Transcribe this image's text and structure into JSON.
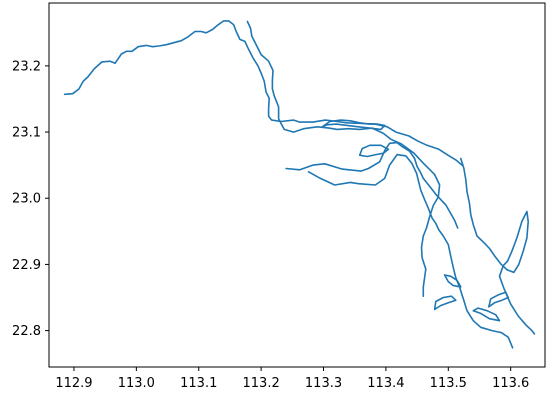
{
  "chart_data": {
    "type": "line",
    "title": "",
    "xlabel": "",
    "ylabel": "",
    "xlim": [
      112.86,
      113.655
    ],
    "ylim": [
      22.745,
      23.295
    ],
    "grid": false,
    "x_ticks": [
      "112.9",
      "113.0",
      "113.1",
      "113.2",
      "113.3",
      "113.4",
      "113.5",
      "113.6"
    ],
    "y_ticks": [
      "22.8",
      "22.9",
      "23.0",
      "23.1",
      "23.2"
    ],
    "x_tick_values": [
      112.9,
      113.0,
      113.1,
      113.2,
      113.3,
      113.4,
      113.5,
      113.6
    ],
    "y_tick_values": [
      22.8,
      22.9,
      23.0,
      23.1,
      23.2
    ],
    "color": "#1f77b4",
    "series": [
      {
        "points": [
          [
            112.885,
            23.157
          ],
          [
            112.898,
            23.158
          ],
          [
            112.908,
            23.165
          ],
          [
            112.915,
            23.177
          ],
          [
            112.922,
            23.183
          ],
          [
            112.933,
            23.196
          ],
          [
            112.945,
            23.206
          ],
          [
            112.958,
            23.207
          ],
          [
            112.966,
            23.204
          ],
          [
            112.976,
            23.218
          ],
          [
            112.984,
            23.222
          ],
          [
            112.993,
            23.222
          ],
          [
            113.003,
            23.229
          ],
          [
            113.016,
            23.231
          ],
          [
            113.026,
            23.229
          ],
          [
            113.036,
            23.23
          ],
          [
            113.048,
            23.232
          ],
          [
            113.06,
            23.235
          ],
          [
            113.072,
            23.238
          ],
          [
            113.083,
            23.244
          ],
          [
            113.094,
            23.252
          ],
          [
            113.104,
            23.252
          ],
          [
            113.112,
            23.25
          ],
          [
            113.122,
            23.255
          ],
          [
            113.131,
            23.262
          ],
          [
            113.14,
            23.268
          ],
          [
            113.148,
            23.268
          ],
          [
            113.156,
            23.262
          ],
          [
            113.16,
            23.252
          ],
          [
            113.166,
            23.24
          ],
          [
            113.174,
            23.237
          ],
          [
            113.18,
            23.225
          ],
          [
            113.187,
            23.212
          ],
          [
            113.195,
            23.2
          ],
          [
            113.201,
            23.187
          ],
          [
            113.205,
            23.177
          ],
          [
            113.208,
            23.16
          ],
          [
            113.213,
            23.151
          ],
          [
            113.212,
            23.135
          ],
          [
            113.212,
            23.124
          ],
          [
            113.217,
            23.118
          ],
          [
            113.232,
            23.116
          ],
          [
            113.252,
            23.118
          ],
          [
            113.262,
            23.115
          ],
          [
            113.283,
            23.115
          ],
          [
            113.303,
            23.118
          ],
          [
            113.322,
            23.116
          ],
          [
            113.337,
            23.114
          ],
          [
            113.362,
            23.113
          ],
          [
            113.383,
            23.112
          ],
          [
            113.402,
            23.108
          ],
          [
            113.416,
            23.1
          ],
          [
            113.437,
            23.094
          ],
          [
            113.452,
            23.086
          ],
          [
            113.466,
            23.08
          ],
          [
            113.485,
            23.074
          ],
          [
            113.498,
            23.066
          ],
          [
            113.512,
            23.058
          ],
          [
            113.522,
            23.05
          ]
        ]
      },
      {
        "points": [
          [
            113.178,
            23.267
          ],
          [
            113.183,
            23.257
          ],
          [
            113.185,
            23.245
          ],
          [
            113.193,
            23.23
          ],
          [
            113.2,
            23.217
          ],
          [
            113.212,
            23.207
          ],
          [
            113.219,
            23.193
          ],
          [
            113.218,
            23.178
          ],
          [
            113.218,
            23.165
          ],
          [
            113.221,
            23.155
          ],
          [
            113.228,
            23.138
          ],
          [
            113.228,
            23.12
          ],
          [
            113.237,
            23.104
          ],
          [
            113.252,
            23.1
          ],
          [
            113.268,
            23.105
          ],
          [
            113.29,
            23.108
          ],
          [
            113.309,
            23.106
          ],
          [
            113.322,
            23.104
          ],
          [
            113.34,
            23.105
          ],
          [
            113.358,
            23.104
          ],
          [
            113.378,
            23.106
          ],
          [
            113.396,
            23.098
          ],
          [
            113.408,
            23.089
          ],
          [
            113.425,
            23.082
          ],
          [
            113.445,
            23.068
          ],
          [
            113.46,
            23.053
          ],
          [
            113.478,
            23.036
          ],
          [
            113.486,
            23.02
          ],
          [
            113.484,
            23.002
          ],
          [
            113.476,
            22.989
          ],
          [
            113.47,
            22.972
          ],
          [
            113.465,
            22.955
          ],
          [
            113.46,
            22.943
          ],
          [
            113.457,
            22.926
          ],
          [
            113.458,
            22.91
          ],
          [
            113.464,
            22.893
          ],
          [
            113.462,
            22.88
          ],
          [
            113.46,
            22.866
          ],
          [
            113.46,
            22.852
          ]
        ]
      },
      {
        "points": [
          [
            113.24,
            23.045
          ],
          [
            113.262,
            23.043
          ],
          [
            113.283,
            23.05
          ],
          [
            113.302,
            23.052
          ],
          [
            113.33,
            23.044
          ],
          [
            113.36,
            23.041
          ],
          [
            113.372,
            23.045
          ],
          [
            113.39,
            23.055
          ],
          [
            113.398,
            23.072
          ],
          [
            113.406,
            23.083
          ],
          [
            113.418,
            23.084
          ],
          [
            113.426,
            23.078
          ],
          [
            113.438,
            23.071
          ],
          [
            113.446,
            23.06
          ],
          [
            113.45,
            23.048
          ],
          [
            113.455,
            23.04
          ],
          [
            113.46,
            23.03
          ],
          [
            113.47,
            23.018
          ],
          [
            113.48,
            23.006
          ],
          [
            113.496,
            22.99
          ],
          [
            113.51,
            22.967
          ],
          [
            113.515,
            22.955
          ]
        ]
      },
      {
        "points": [
          [
            113.276,
            23.04
          ],
          [
            113.295,
            23.03
          ],
          [
            113.318,
            23.02
          ],
          [
            113.343,
            23.024
          ],
          [
            113.356,
            23.022
          ],
          [
            113.383,
            23.02
          ],
          [
            113.398,
            23.03
          ],
          [
            113.406,
            23.05
          ],
          [
            113.418,
            23.066
          ],
          [
            113.432,
            23.064
          ],
          [
            113.442,
            23.052
          ],
          [
            113.449,
            23.038
          ],
          [
            113.456,
            23.012
          ],
          [
            113.462,
            22.998
          ],
          [
            113.468,
            22.985
          ],
          [
            113.474,
            22.97
          ],
          [
            113.48,
            22.962
          ],
          [
            113.485,
            22.952
          ],
          [
            113.492,
            22.943
          ],
          [
            113.5,
            22.93
          ],
          [
            113.504,
            22.912
          ],
          [
            113.508,
            22.895
          ],
          [
            113.512,
            22.88
          ],
          [
            113.518,
            22.866
          ],
          [
            113.524,
            22.848
          ],
          [
            113.53,
            22.83
          ],
          [
            113.54,
            22.815
          ],
          [
            113.552,
            22.805
          ],
          [
            113.57,
            22.8
          ],
          [
            113.585,
            22.797
          ],
          [
            113.596,
            22.79
          ],
          [
            113.603,
            22.774
          ]
        ]
      },
      {
        "points": [
          [
            113.52,
            23.06
          ],
          [
            113.525,
            23.045
          ],
          [
            113.528,
            23.028
          ],
          [
            113.53,
            23.01
          ],
          [
            113.534,
            22.992
          ],
          [
            113.536,
            22.975
          ],
          [
            113.54,
            22.96
          ],
          [
            113.546,
            22.943
          ],
          [
            113.558,
            22.932
          ],
          [
            113.566,
            22.924
          ],
          [
            113.574,
            22.913
          ],
          [
            113.584,
            22.901
          ],
          [
            113.594,
            22.892
          ],
          [
            113.605,
            22.888
          ],
          [
            113.613,
            22.9
          ],
          [
            113.62,
            22.92
          ],
          [
            113.626,
            22.94
          ],
          [
            113.628,
            22.965
          ],
          [
            113.626,
            22.98
          ],
          [
            113.618,
            22.965
          ],
          [
            113.61,
            22.94
          ],
          [
            113.602,
            22.92
          ],
          [
            113.595,
            22.905
          ],
          [
            113.588,
            22.898
          ],
          [
            113.582,
            22.882
          ],
          [
            113.59,
            22.862
          ],
          [
            113.6,
            22.84
          ],
          [
            113.612,
            22.822
          ],
          [
            113.625,
            22.808
          ],
          [
            113.634,
            22.8
          ],
          [
            113.638,
            22.795
          ]
        ]
      },
      {
        "points": [
          [
            113.298,
            23.108
          ],
          [
            113.31,
            23.116
          ],
          [
            113.328,
            23.118
          ],
          [
            113.343,
            23.117
          ],
          [
            113.358,
            23.114
          ],
          [
            113.372,
            23.112
          ],
          [
            113.386,
            23.112
          ],
          [
            113.398,
            23.11
          ],
          [
            113.392,
            23.104
          ],
          [
            113.374,
            23.106
          ],
          [
            113.356,
            23.108
          ],
          [
            113.338,
            23.11
          ],
          [
            113.32,
            23.112
          ],
          [
            113.306,
            23.111
          ],
          [
            113.298,
            23.108
          ]
        ]
      },
      {
        "points": [
          [
            113.358,
            23.065
          ],
          [
            113.362,
            23.075
          ],
          [
            113.374,
            23.08
          ],
          [
            113.392,
            23.08
          ],
          [
            113.404,
            23.074
          ],
          [
            113.396,
            23.068
          ],
          [
            113.384,
            23.066
          ],
          [
            113.37,
            23.063
          ],
          [
            113.358,
            23.065
          ]
        ]
      },
      {
        "points": [
          [
            113.478,
            22.832
          ],
          [
            113.488,
            22.838
          ],
          [
            113.5,
            22.842
          ],
          [
            113.512,
            22.846
          ],
          [
            113.505,
            22.852
          ],
          [
            113.492,
            22.85
          ],
          [
            113.48,
            22.844
          ],
          [
            113.478,
            22.832
          ]
        ]
      },
      {
        "points": [
          [
            113.565,
            22.836
          ],
          [
            113.574,
            22.842
          ],
          [
            113.586,
            22.846
          ],
          [
            113.596,
            22.85
          ],
          [
            113.592,
            22.858
          ],
          [
            113.58,
            22.854
          ],
          [
            113.568,
            22.848
          ],
          [
            113.565,
            22.836
          ]
        ]
      },
      {
        "points": [
          [
            113.54,
            22.83
          ],
          [
            113.552,
            22.826
          ],
          [
            113.566,
            22.818
          ],
          [
            113.582,
            22.815
          ],
          [
            113.576,
            22.824
          ],
          [
            113.562,
            22.83
          ],
          [
            113.548,
            22.834
          ],
          [
            113.54,
            22.83
          ]
        ]
      },
      {
        "points": [
          [
            113.494,
            22.884
          ],
          [
            113.5,
            22.874
          ],
          [
            113.508,
            22.868
          ],
          [
            113.52,
            22.866
          ],
          [
            113.514,
            22.876
          ],
          [
            113.504,
            22.882
          ],
          [
            113.494,
            22.884
          ]
        ]
      }
    ]
  }
}
